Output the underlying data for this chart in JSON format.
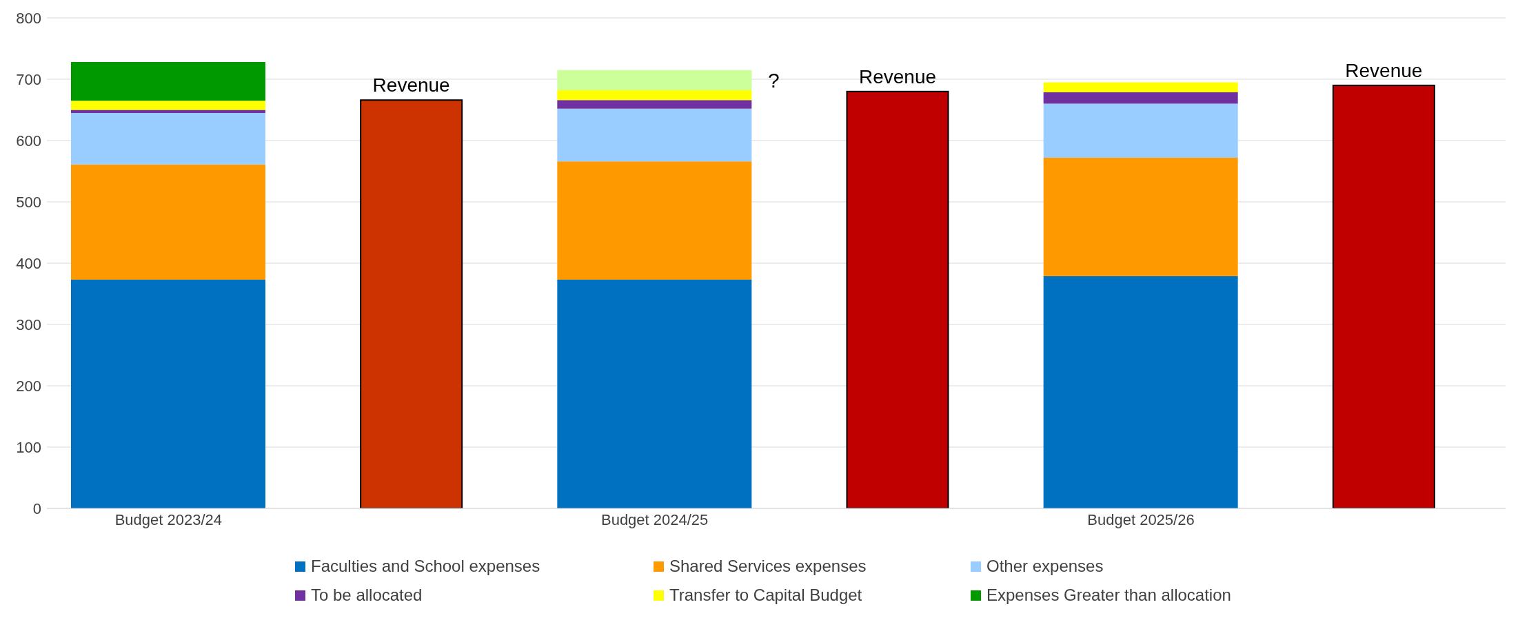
{
  "chart_data": {
    "type": "bar",
    "stacked": true,
    "categories": [
      "Budget 2023/24",
      null,
      "Budget 2024/25",
      null,
      "Budget 2025/26",
      null
    ],
    "series": [
      {
        "name": "Faculties and School expenses",
        "color": "#0070c0",
        "values": [
          373,
          null,
          373,
          null,
          379,
          null
        ]
      },
      {
        "name": "Shared Services expenses",
        "color": "#ff9900",
        "values": [
          188,
          null,
          193,
          null,
          193,
          null
        ]
      },
      {
        "name": "Other expenses",
        "color": "#99ccff",
        "values": [
          84,
          null,
          86,
          null,
          88,
          null
        ]
      },
      {
        "name": "To be allocated",
        "color": "#7030a0",
        "values": [
          5,
          null,
          14,
          null,
          19,
          null
        ]
      },
      {
        "name": "Transfer to Capital Budget",
        "color": "#ffff00",
        "values": [
          15,
          null,
          16,
          null,
          16,
          null
        ]
      },
      {
        "name": "Expenses Greater than allocation",
        "color": "#009900",
        "colors": [
          "#009900",
          null,
          "#ccff99",
          null,
          null,
          null
        ],
        "values": [
          63,
          null,
          33,
          null,
          null,
          null
        ]
      },
      {
        "name": "Revenue",
        "colors": [
          null,
          "#cc3300",
          null,
          "#c00000",
          null,
          "#c00000"
        ],
        "values": [
          null,
          666,
          null,
          680,
          null,
          690
        ]
      }
    ],
    "annotations": [
      "?"
    ],
    "ylim": [
      0,
      800
    ],
    "yticks": [
      0,
      100,
      200,
      300,
      400,
      500,
      600,
      700,
      800
    ],
    "grid": "y",
    "legend": "bottom"
  }
}
